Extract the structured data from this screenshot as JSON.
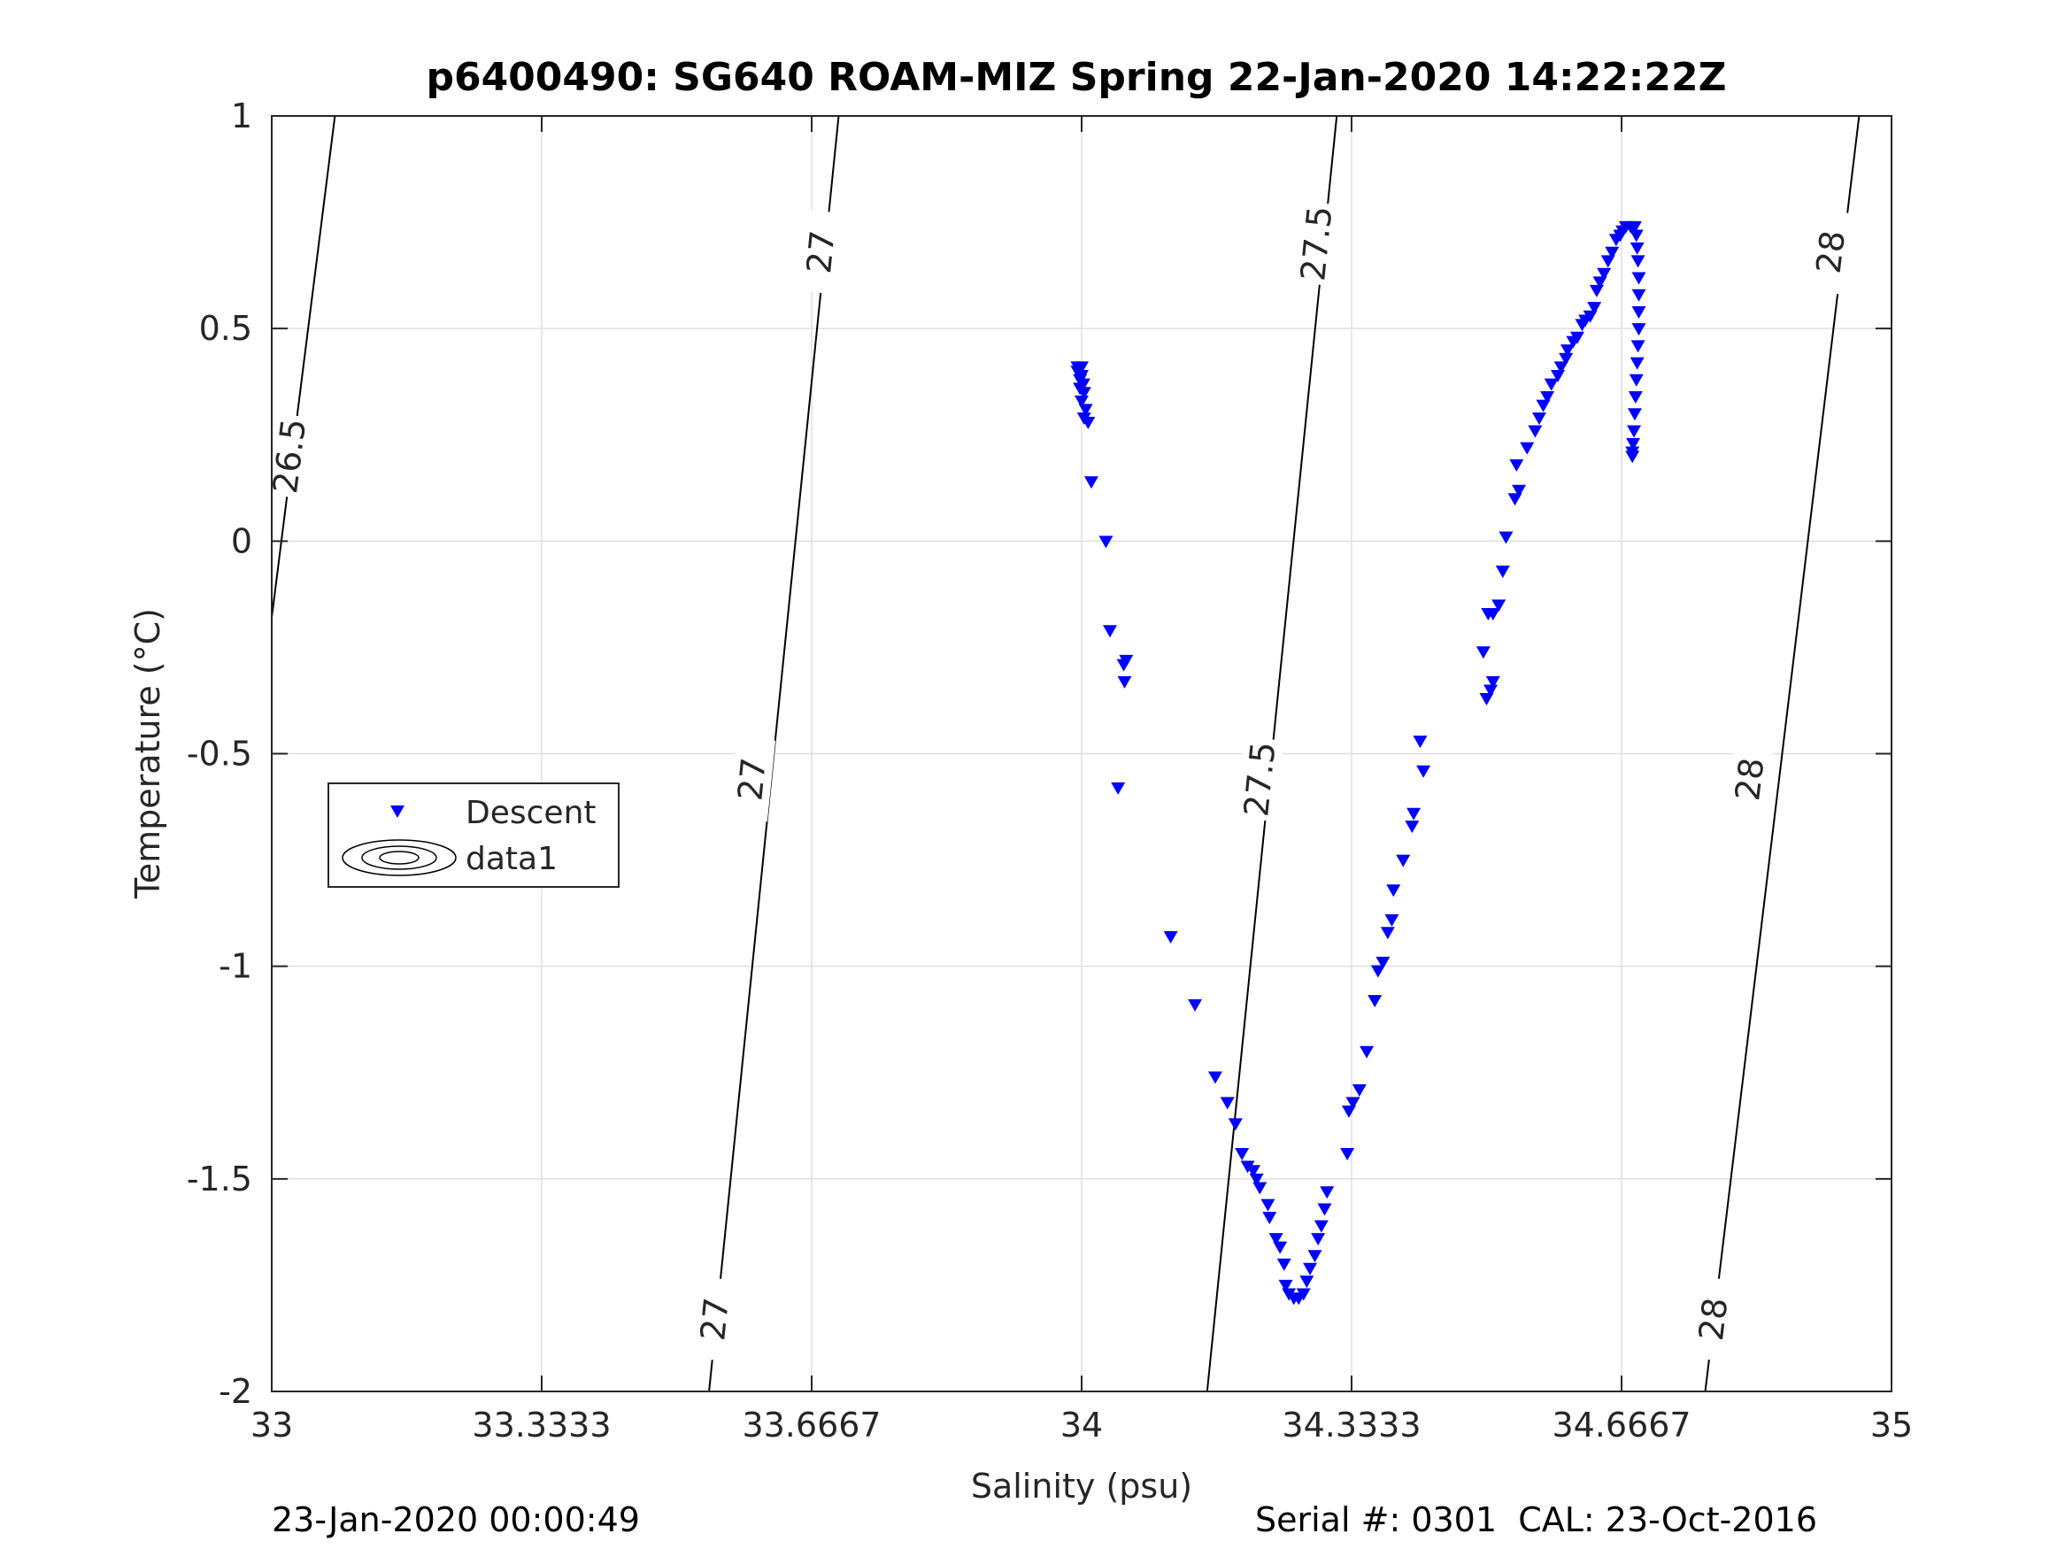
{
  "chart_data": {
    "type": "scatter",
    "title": "p6400490: SG640 ROAM-MIZ Spring 22-Jan-2020 14:22:22Z",
    "xlabel": "Salinity (psu)",
    "ylabel": "Temperature (°C)",
    "xlim": [
      33,
      35
    ],
    "ylim": [
      -2,
      1
    ],
    "grid": true,
    "x_ticks": [
      33,
      33.3333,
      33.6667,
      34,
      34.3333,
      34.6667,
      35
    ],
    "x_tick_labels": [
      "33",
      "33.3333",
      "33.6667",
      "34",
      "34.3333",
      "34.6667",
      "35"
    ],
    "y_ticks": [
      1,
      0.5,
      0,
      -0.5,
      -1,
      -1.5,
      -2
    ],
    "y_tick_labels": [
      "1",
      "0.5",
      "0",
      "-0.5",
      "-1",
      "-1.5",
      "-2"
    ],
    "legend": {
      "placement": "left",
      "entries": [
        {
          "label": "Descent",
          "marker": "triangle-down",
          "color": "#0000ff"
        },
        {
          "label": "data1",
          "marker": "contour",
          "color": "#000000"
        }
      ]
    },
    "series": [
      {
        "name": "Descent",
        "marker": "triangle-down",
        "color": "#0000ff",
        "points": [
          [
            33.995,
            0.41
          ],
          [
            33.995,
            0.4
          ],
          [
            34.0,
            0.41
          ],
          [
            34.0,
            0.39
          ],
          [
            33.998,
            0.38
          ],
          [
            34.002,
            0.37
          ],
          [
            33.998,
            0.36
          ],
          [
            34.003,
            0.35
          ],
          [
            34.0,
            0.33
          ],
          [
            34.005,
            0.31
          ],
          [
            34.003,
            0.29
          ],
          [
            34.008,
            0.28
          ],
          [
            34.012,
            0.14
          ],
          [
            34.03,
            0.0
          ],
          [
            34.035,
            -0.21
          ],
          [
            34.055,
            -0.28
          ],
          [
            34.052,
            -0.29
          ],
          [
            34.053,
            -0.33
          ],
          [
            34.045,
            -0.58
          ],
          [
            34.11,
            -0.93
          ],
          [
            34.14,
            -1.09
          ],
          [
            34.165,
            -1.26
          ],
          [
            34.18,
            -1.32
          ],
          [
            34.19,
            -1.37
          ],
          [
            34.198,
            -1.44
          ],
          [
            34.205,
            -1.47
          ],
          [
            34.212,
            -1.48
          ],
          [
            34.216,
            -1.5
          ],
          [
            34.22,
            -1.52
          ],
          [
            34.23,
            -1.56
          ],
          [
            34.232,
            -1.59
          ],
          [
            34.24,
            -1.64
          ],
          [
            34.245,
            -1.66
          ],
          [
            34.25,
            -1.7
          ],
          [
            34.252,
            -1.75
          ],
          [
            34.256,
            -1.77
          ],
          [
            34.262,
            -1.78
          ],
          [
            34.268,
            -1.78
          ],
          [
            34.274,
            -1.77
          ],
          [
            34.278,
            -1.74
          ],
          [
            34.282,
            -1.71
          ],
          [
            34.288,
            -1.68
          ],
          [
            34.292,
            -1.64
          ],
          [
            34.296,
            -1.61
          ],
          [
            34.3,
            -1.57
          ],
          [
            34.303,
            -1.53
          ],
          [
            34.328,
            -1.44
          ],
          [
            34.33,
            -1.34
          ],
          [
            34.335,
            -1.32
          ],
          [
            34.343,
            -1.29
          ],
          [
            34.352,
            -1.2
          ],
          [
            34.362,
            -1.08
          ],
          [
            34.366,
            -1.01
          ],
          [
            34.372,
            -0.99
          ],
          [
            34.378,
            -0.92
          ],
          [
            34.383,
            -0.89
          ],
          [
            34.385,
            -0.82
          ],
          [
            34.397,
            -0.75
          ],
          [
            34.408,
            -0.67
          ],
          [
            34.41,
            -0.64
          ],
          [
            34.422,
            -0.54
          ],
          [
            34.418,
            -0.47
          ],
          [
            34.5,
            -0.37
          ],
          [
            34.505,
            -0.35
          ],
          [
            34.508,
            -0.33
          ],
          [
            34.496,
            -0.26
          ],
          [
            34.502,
            -0.17
          ],
          [
            34.508,
            -0.17
          ],
          [
            34.515,
            -0.15
          ],
          [
            34.52,
            -0.07
          ],
          [
            34.524,
            0.01
          ],
          [
            34.535,
            0.1
          ],
          [
            34.54,
            0.12
          ],
          [
            34.537,
            0.18
          ],
          [
            34.55,
            0.22
          ],
          [
            34.56,
            0.26
          ],
          [
            34.565,
            0.29
          ],
          [
            34.57,
            0.32
          ],
          [
            34.575,
            0.34
          ],
          [
            34.58,
            0.37
          ],
          [
            34.588,
            0.39
          ],
          [
            34.592,
            0.41
          ],
          [
            34.598,
            0.43
          ],
          [
            34.6,
            0.45
          ],
          [
            34.607,
            0.47
          ],
          [
            34.612,
            0.48
          ],
          [
            34.618,
            0.51
          ],
          [
            34.622,
            0.52
          ],
          [
            34.628,
            0.53
          ],
          [
            34.633,
            0.55
          ],
          [
            34.636,
            0.59
          ],
          [
            34.64,
            0.61
          ],
          [
            34.645,
            0.63
          ],
          [
            34.65,
            0.66
          ],
          [
            34.655,
            0.68
          ],
          [
            34.66,
            0.71
          ],
          [
            34.665,
            0.72
          ],
          [
            34.668,
            0.73
          ],
          [
            34.672,
            0.74
          ],
          [
            34.678,
            0.74
          ],
          [
            34.683,
            0.74
          ],
          [
            34.685,
            0.72
          ],
          [
            34.686,
            0.69
          ],
          [
            34.687,
            0.66
          ],
          [
            34.688,
            0.62
          ],
          [
            34.688,
            0.58
          ],
          [
            34.688,
            0.54
          ],
          [
            34.688,
            0.5
          ],
          [
            34.687,
            0.46
          ],
          [
            34.686,
            0.42
          ],
          [
            34.685,
            0.38
          ],
          [
            34.684,
            0.34
          ],
          [
            34.683,
            0.3
          ],
          [
            34.682,
            0.26
          ],
          [
            34.681,
            0.23
          ],
          [
            34.68,
            0.21
          ],
          [
            34.68,
            0.2
          ]
        ]
      }
    ],
    "isopycnals": [
      {
        "value": "26.5",
        "points": [
          [
            33.0,
            -0.18
          ],
          [
            33.078,
            1.0
          ]
        ],
        "labels": [
          [
            33.022,
            0.2
          ]
        ]
      },
      {
        "value": "27",
        "points": [
          [
            33.54,
            -2.0
          ],
          [
            33.7,
            1.0
          ]
        ],
        "labels": [
          [
            33.547,
            -1.83
          ],
          [
            33.593,
            -0.56
          ],
          [
            33.678,
            0.68
          ]
        ]
      },
      {
        "value": "27.5",
        "points": [
          [
            34.155,
            -2.0
          ],
          [
            34.315,
            1.0
          ]
        ],
        "labels": [
          [
            34.22,
            -0.56
          ],
          [
            34.29,
            0.7
          ]
        ]
      },
      {
        "value": "28",
        "points": [
          [
            34.77,
            -2.0
          ],
          [
            34.96,
            1.0
          ]
        ],
        "labels": [
          [
            34.78,
            -1.83
          ],
          [
            34.825,
            -0.56
          ],
          [
            34.925,
            0.68
          ]
        ]
      }
    ]
  },
  "footer": {
    "left": "23-Jan-2020 00:00:49",
    "right": "Serial #: 0301  CAL: 23-Oct-2016"
  }
}
